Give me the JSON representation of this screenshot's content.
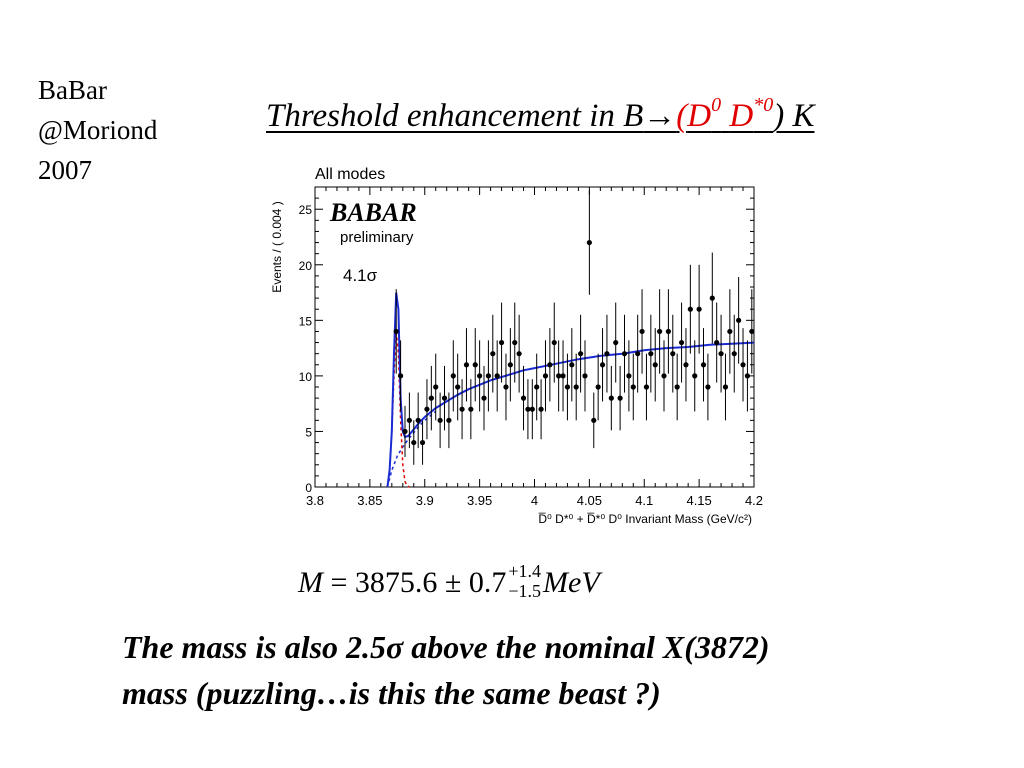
{
  "corner_note": [
    "BaBar",
    "@Moriond",
    "2007"
  ],
  "title": {
    "prefix": "Threshold enhancement in B",
    "arrow": "→",
    "open_paren": "(",
    "d0": "D",
    "d0_sup": "0",
    "dstar": "D",
    "dstar_sup": "*0",
    "suffix": ") K"
  },
  "colors": {
    "title_red": "#e00000",
    "fit_blue": "#1a2bd4",
    "signal_red": "#e00000"
  },
  "chart_data": {
    "type": "scatter",
    "title": "All modes",
    "experiment_logo": "BABAR",
    "logo_sub": "preliminary",
    "significance": "4.1σ",
    "xlabel": "D̅⁰ D*⁰ + D̅*⁰ D⁰ Invariant Mass (GeV/c²)",
    "ylabel": "Events / ( 0.004 )",
    "xlim": [
      3.8,
      4.2
    ],
    "ylim": [
      0,
      27
    ],
    "xticks": [
      "3.8",
      "3.85",
      "3.9",
      "3.95",
      "4",
      "4.05",
      "4.1",
      "4.15",
      "4.2"
    ],
    "yticks": [
      "0",
      "5",
      "10",
      "15",
      "20",
      "25"
    ],
    "series": [
      {
        "name": "",
        "type": "points",
        "x": [
          3.874,
          3.878,
          3.882,
          3.886,
          3.89,
          3.894,
          3.898,
          3.902,
          3.906,
          3.91,
          3.914,
          3.918,
          3.922,
          3.926,
          3.93,
          3.934,
          3.938,
          3.942,
          3.946,
          3.95,
          3.954,
          3.958,
          3.962,
          3.966,
          3.97,
          3.974,
          3.978,
          3.982,
          3.986,
          3.99,
          3.994,
          3.998,
          4.002,
          4.006,
          4.01,
          4.014,
          4.018,
          4.022,
          4.026,
          4.03,
          4.034,
          4.038,
          4.042,
          4.046,
          4.05,
          4.054,
          4.058,
          4.062,
          4.066,
          4.07,
          4.074,
          4.078,
          4.082,
          4.086,
          4.09,
          4.094,
          4.098,
          4.102,
          4.106,
          4.11,
          4.114,
          4.118,
          4.122,
          4.126,
          4.13,
          4.134,
          4.138,
          4.142,
          4.146,
          4.15,
          4.154,
          4.158,
          4.162,
          4.166,
          4.17,
          4.174,
          4.178,
          4.182,
          4.186,
          4.19,
          4.194,
          4.198
        ],
        "y": [
          14,
          10,
          5,
          6,
          4,
          6,
          4,
          7,
          8,
          9,
          6,
          8,
          6,
          10,
          9,
          7,
          11,
          7,
          11,
          10,
          8,
          10,
          12,
          10,
          13,
          9,
          11,
          13,
          12,
          8,
          7,
          7,
          9,
          7,
          10,
          11,
          13,
          10,
          10,
          9,
          11,
          9,
          12,
          10,
          22,
          6,
          9,
          11,
          12,
          8,
          13,
          8,
          12,
          10,
          9,
          12,
          14,
          9,
          12,
          11,
          14,
          10,
          14,
          12,
          9,
          13,
          11,
          16,
          10,
          16,
          11,
          9,
          17,
          13,
          12,
          9,
          14,
          12,
          15,
          11,
          10,
          14
        ],
        "yerr": [
          3.8,
          3.2,
          2.3,
          2.5,
          2.0,
          2.5,
          2.0,
          2.7,
          2.9,
          3.0,
          2.5,
          2.9,
          2.5,
          3.2,
          3.0,
          2.7,
          3.3,
          2.7,
          3.3,
          3.2,
          2.9,
          3.2,
          3.5,
          3.2,
          3.6,
          3.0,
          3.3,
          3.6,
          3.5,
          2.9,
          2.7,
          2.7,
          3.0,
          2.7,
          3.2,
          3.3,
          3.6,
          3.2,
          3.2,
          3.0,
          3.3,
          3.0,
          3.5,
          3.2,
          4.7,
          2.5,
          3.0,
          3.3,
          3.5,
          2.9,
          3.6,
          2.9,
          3.5,
          3.2,
          3.0,
          3.5,
          3.8,
          3.0,
          3.5,
          3.3,
          3.8,
          3.2,
          3.8,
          3.5,
          3.0,
          3.6,
          3.3,
          4.0,
          3.2,
          4.0,
          3.3,
          3.0,
          4.1,
          3.6,
          3.5,
          3.0,
          3.8,
          3.5,
          3.9,
          3.3,
          3.2,
          3.8
        ]
      },
      {
        "name": "",
        "type": "line",
        "style": "solid",
        "x": [
          3.866,
          3.868,
          3.87,
          3.872,
          3.874,
          3.876,
          3.878,
          3.88,
          3.882,
          3.885,
          3.89,
          3.895,
          3.9,
          3.91,
          3.92,
          3.93,
          3.94,
          3.95,
          3.96,
          3.97,
          3.98,
          3.99,
          4.0,
          4.02,
          4.04,
          4.06,
          4.08,
          4.1,
          4.12,
          4.14,
          4.16,
          4.18,
          4.2
        ],
        "y": [
          0,
          1.5,
          5,
          12,
          17.5,
          16,
          8,
          5,
          4.5,
          4.6,
          5.2,
          5.8,
          6.3,
          7.1,
          7.7,
          8.3,
          8.8,
          9.2,
          9.6,
          9.9,
          10.2,
          10.5,
          10.7,
          11.1,
          11.5,
          11.8,
          12.0,
          12.3,
          12.5,
          12.6,
          12.8,
          12.9,
          13.0
        ]
      },
      {
        "name": "",
        "type": "line",
        "style": "dashed",
        "color": "red",
        "x": [
          3.866,
          3.868,
          3.87,
          3.872,
          3.874,
          3.876,
          3.878,
          3.88,
          3.882,
          3.884,
          3.886
        ],
        "y": [
          0,
          1.5,
          5,
          10,
          14,
          12,
          6,
          2,
          0.5,
          0.1,
          0
        ]
      },
      {
        "name": "",
        "type": "line",
        "style": "dashed",
        "color": "blue",
        "x": [
          3.866,
          3.87,
          3.875,
          3.88,
          3.885,
          3.89,
          3.895,
          3.9,
          3.91
        ],
        "y": [
          0,
          1.5,
          2.8,
          3.6,
          4.3,
          4.9,
          5.5,
          6.0,
          6.8
        ]
      }
    ]
  },
  "formula": {
    "symbol": "M",
    "equals": " = ",
    "value": "3875.6",
    "pm": " ± ",
    "stat": "0.7",
    "err_up": "+1.4",
    "err_down": "−1.5",
    "unit": "MeV"
  },
  "conclusion": [
    "The mass is also 2.5σ above the nominal X(3872)",
    "mass (puzzling…is this the same beast ?)"
  ]
}
